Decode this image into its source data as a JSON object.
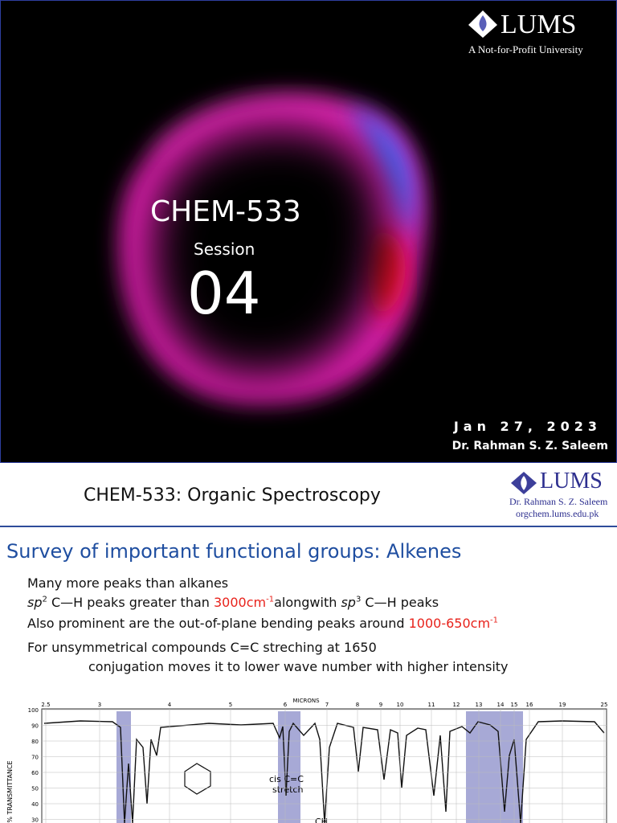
{
  "slide1": {
    "logo": {
      "name": "LUMS",
      "tagline": "A Not-for-Profit University"
    },
    "course": "CHEM-533",
    "session_label": "Session",
    "session_number": "04",
    "date": "Jan 27, 2023",
    "author": "Dr. Rahman S. Z. Saleem"
  },
  "slide2": {
    "header": {
      "title": "CHEM-533: Organic Spectroscopy",
      "logo": "LUMS",
      "author": "Dr. Rahman S. Z. Saleem",
      "website": "orgchem.lums.edu.pk"
    },
    "heading": "Survey of important functional groups: Alkenes",
    "lines": [
      [
        "Many more peaks than alkanes"
      ],
      [
        "sp",
        "2",
        " C—H peaks greater than ",
        "3000cm",
        "-1",
        "alongwith ",
        "sp",
        "3",
        " C—H peaks"
      ],
      [
        "Also prominent are the out-of-plane bending peaks around ",
        "1000-650cm",
        "-1"
      ],
      [
        "For unsymmetrical compounds C=C streching at 1650"
      ],
      [
        "conjugation moves it to lower wave number with higher intensity"
      ]
    ],
    "spectrum": {
      "x_axis_title": "MICRONS",
      "x_ticks": [
        2.5,
        3,
        4,
        5,
        6,
        7,
        8,
        9,
        10,
        11,
        12,
        13,
        14,
        15,
        16,
        19,
        25
      ],
      "y_axis_title": "% TRANSMITTANCE",
      "y_ticks": [
        100,
        90,
        80,
        70,
        60,
        50,
        40,
        30
      ],
      "annotations": [
        "cis C=C",
        "stretch"
      ],
      "label": "CH"
    }
  }
}
